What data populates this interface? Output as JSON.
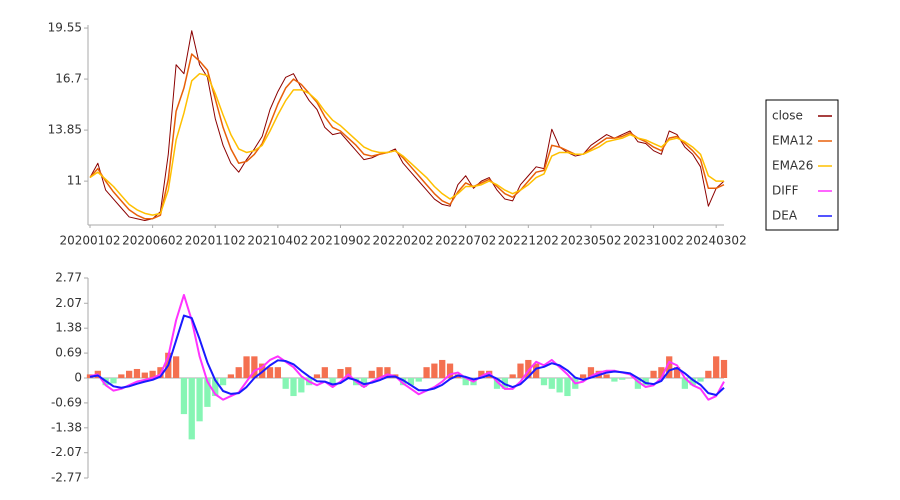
{
  "chart_data": [
    {
      "type": "line",
      "legend": "right",
      "categories": [
        "20200102",
        null,
        null,
        null,
        null,
        null,
        null,
        null,
        "20200602",
        null,
        null,
        null,
        null,
        null,
        null,
        null,
        "20201102",
        null,
        null,
        null,
        null,
        null,
        null,
        null,
        "20210402",
        null,
        null,
        null,
        null,
        null,
        null,
        null,
        "20210902",
        null,
        null,
        null,
        null,
        null,
        null,
        null,
        "20220202",
        null,
        null,
        null,
        null,
        null,
        null,
        null,
        "20220702",
        null,
        null,
        null,
        null,
        null,
        null,
        null,
        "20221202",
        null,
        null,
        null,
        null,
        null,
        null,
        null,
        "20230502",
        null,
        null,
        null,
        null,
        null,
        null,
        null,
        "20231002",
        null,
        null,
        null,
        null,
        null,
        null,
        null,
        "20240302",
        null
      ],
      "ylim": [
        8.55,
        19.72
      ],
      "yticks": [
        11,
        13.85,
        16.7,
        19.55
      ],
      "series": [
        {
          "name": "close",
          "color": "#8b0000",
          "values": [
            11.2,
            12.0,
            10.5,
            10.0,
            9.5,
            9.0,
            8.9,
            8.8,
            8.9,
            9.3,
            12.5,
            17.5,
            17.0,
            19.4,
            17.5,
            16.8,
            14.5,
            13.0,
            12.0,
            11.5,
            12.2,
            12.8,
            13.5,
            15.0,
            16.0,
            16.8,
            17.0,
            16.2,
            15.5,
            15.0,
            14.0,
            13.6,
            13.7,
            13.2,
            12.7,
            12.2,
            12.3,
            12.5,
            12.6,
            12.8,
            12.0,
            11.5,
            11.0,
            10.5,
            10.0,
            9.7,
            9.6,
            10.8,
            11.3,
            10.6,
            11.0,
            11.2,
            10.5,
            10.0,
            9.9,
            10.8,
            11.3,
            11.8,
            11.7,
            13.9,
            12.9,
            12.6,
            12.4,
            12.5,
            13.0,
            13.3,
            13.6,
            13.4,
            13.6,
            13.8,
            13.2,
            13.1,
            12.7,
            12.5,
            13.8,
            13.6,
            12.9,
            12.5,
            11.8,
            9.6,
            10.6,
            11.0
          ]
        },
        {
          "name": "EMA12",
          "color": "#e8600a",
          "values": [
            11.2,
            11.7,
            11.0,
            10.4,
            9.9,
            9.4,
            9.1,
            8.9,
            8.9,
            9.1,
            11.1,
            14.9,
            16.2,
            18.1,
            17.7,
            17.2,
            15.6,
            14.0,
            12.8,
            12.0,
            12.1,
            12.5,
            13.1,
            14.2,
            15.3,
            16.2,
            16.7,
            16.4,
            15.9,
            15.4,
            14.6,
            14.0,
            13.8,
            13.4,
            13.0,
            12.5,
            12.4,
            12.5,
            12.6,
            12.7,
            12.3,
            11.8,
            11.3,
            10.8,
            10.3,
            9.9,
            9.7,
            10.4,
            10.9,
            10.7,
            10.9,
            11.1,
            10.7,
            10.3,
            10.1,
            10.5,
            11.0,
            11.5,
            11.6,
            13.0,
            12.9,
            12.7,
            12.5,
            12.5,
            12.8,
            13.1,
            13.4,
            13.4,
            13.5,
            13.7,
            13.4,
            13.2,
            12.9,
            12.7,
            13.4,
            13.5,
            13.1,
            12.7,
            12.2,
            10.6,
            10.6,
            10.8
          ]
        },
        {
          "name": "EMA26",
          "color": "#ffc000",
          "values": [
            11.2,
            11.5,
            11.1,
            10.7,
            10.2,
            9.7,
            9.4,
            9.2,
            9.1,
            9.2,
            10.5,
            13.3,
            14.8,
            16.6,
            17.0,
            16.9,
            15.9,
            14.7,
            13.6,
            12.8,
            12.6,
            12.7,
            13.0,
            13.8,
            14.7,
            15.5,
            16.1,
            16.1,
            15.9,
            15.5,
            14.9,
            14.4,
            14.1,
            13.7,
            13.3,
            12.9,
            12.7,
            12.6,
            12.6,
            12.7,
            12.4,
            12.0,
            11.6,
            11.2,
            10.7,
            10.3,
            10.0,
            10.3,
            10.7,
            10.7,
            10.8,
            11.0,
            10.8,
            10.5,
            10.3,
            10.5,
            10.8,
            11.2,
            11.4,
            12.4,
            12.6,
            12.6,
            12.5,
            12.5,
            12.7,
            12.9,
            13.2,
            13.3,
            13.4,
            13.6,
            13.4,
            13.3,
            13.1,
            12.9,
            13.3,
            13.4,
            13.2,
            12.9,
            12.5,
            11.3,
            11.0,
            11.0
          ]
        }
      ]
    },
    {
      "type": "line",
      "ylim": [
        -2.77,
        2.77
      ],
      "yticks": [
        -2.77,
        -2.07,
        -1.38,
        -0.69,
        0,
        0.69,
        1.38,
        2.07,
        2.77
      ],
      "bars": {
        "color": "#f47050",
        "negative_color": "#86f5b4",
        "values": [
          0.1,
          0.2,
          -0.2,
          -0.15,
          0.1,
          0.2,
          0.25,
          0.15,
          0.2,
          0.3,
          0.7,
          0.6,
          -1.0,
          -1.7,
          -1.2,
          -0.8,
          -0.5,
          -0.2,
          0.1,
          0.3,
          0.6,
          0.6,
          0.4,
          0.3,
          0.3,
          -0.3,
          -0.5,
          -0.4,
          -0.2,
          0.1,
          0.3,
          -0.2,
          0.25,
          0.3,
          -0.2,
          -0.25,
          0.2,
          0.3,
          0.3,
          0.1,
          -0.2,
          -0.2,
          -0.1,
          0.3,
          0.4,
          0.5,
          0.4,
          0.1,
          -0.2,
          -0.2,
          0.2,
          0.2,
          -0.3,
          -0.3,
          0.1,
          0.4,
          0.5,
          0.4,
          -0.2,
          -0.3,
          -0.4,
          -0.5,
          -0.3,
          0.1,
          0.3,
          0.2,
          0.1,
          -0.1,
          -0.05,
          0.0,
          -0.3,
          -0.2,
          0.2,
          0.3,
          0.6,
          0.3,
          -0.3,
          -0.2,
          -0.1,
          0.2,
          0.6,
          0.5
        ]
      },
      "series": [
        {
          "name": "DIFF",
          "color": "#ff33ff",
          "values": [
            0.05,
            0.1,
            -0.2,
            -0.35,
            -0.3,
            -0.2,
            -0.1,
            -0.05,
            0,
            0.1,
            0.6,
            1.6,
            2.3,
            1.6,
            0.6,
            -0.1,
            -0.45,
            -0.6,
            -0.5,
            -0.4,
            -0.1,
            0.2,
            0.3,
            0.5,
            0.6,
            0.45,
            0.3,
            0.05,
            -0.1,
            -0.2,
            -0.1,
            -0.25,
            -0.1,
            0.1,
            -0.1,
            -0.25,
            -0.1,
            0,
            0.1,
            0.05,
            -0.15,
            -0.3,
            -0.45,
            -0.35,
            -0.25,
            -0.1,
            0.1,
            0.15,
            0,
            -0.1,
            0.05,
            0.15,
            -0.1,
            -0.3,
            -0.3,
            -0.1,
            0.2,
            0.45,
            0.35,
            0.5,
            0.3,
            0.1,
            -0.15,
            -0.1,
            0.05,
            0.15,
            0.2,
            0.2,
            0.15,
            0.1,
            -0.1,
            -0.25,
            -0.2,
            0,
            0.45,
            0.35,
            0,
            -0.2,
            -0.3,
            -0.6,
            -0.5,
            -0.1
          ]
        },
        {
          "name": "DEA",
          "color": "#1a1aff",
          "values": [
            0.03,
            0.07,
            -0.08,
            -0.23,
            -0.27,
            -0.23,
            -0.16,
            -0.1,
            -0.05,
            0.04,
            0.35,
            1.04,
            1.73,
            1.66,
            1.08,
            0.43,
            -0.06,
            -0.36,
            -0.44,
            -0.42,
            -0.25,
            0,
            0.17,
            0.35,
            0.49,
            0.47,
            0.38,
            0.2,
            0.04,
            -0.09,
            -0.1,
            -0.18,
            -0.14,
            0,
            -0.06,
            -0.17,
            -0.13,
            -0.06,
            0.03,
            0.04,
            -0.06,
            -0.2,
            -0.34,
            -0.34,
            -0.29,
            -0.19,
            -0.03,
            0.07,
            0.03,
            -0.04,
            0.01,
            0.08,
            -0.02,
            -0.17,
            -0.25,
            -0.17,
            0.03,
            0.26,
            0.31,
            0.41,
            0.35,
            0.21,
            0.01,
            -0.05,
            0.01,
            0.08,
            0.15,
            0.18,
            0.16,
            0.13,
            0,
            -0.14,
            -0.17,
            -0.08,
            0.21,
            0.28,
            0.13,
            -0.05,
            -0.19,
            -0.42,
            -0.47,
            -0.27
          ]
        }
      ]
    }
  ]
}
